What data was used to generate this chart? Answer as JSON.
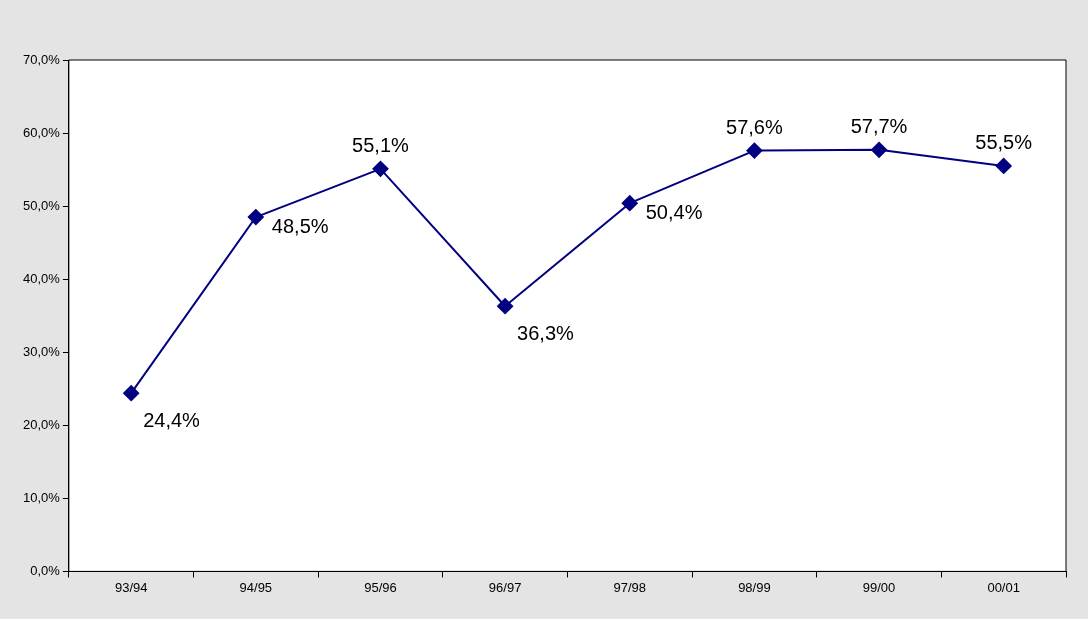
{
  "chart_data": {
    "type": "line",
    "categories": [
      "93/94",
      "94/95",
      "95/96",
      "96/97",
      "97/98",
      "98/99",
      "99/00",
      "00/01"
    ],
    "series": [
      {
        "color": "#000080",
        "values": [
          24.4,
          48.5,
          55.1,
          36.3,
          50.4,
          57.6,
          57.7,
          55.5
        ],
        "value_labels": [
          "24,4%",
          "48,5%",
          "55,1%",
          "36,3%",
          "50,4%",
          "57,6%",
          "57,7%",
          "55,5%"
        ]
      }
    ],
    "ylim": [
      0,
      70
    ],
    "yticks": [
      {
        "value": 0,
        "label": "0,0%"
      },
      {
        "value": 10,
        "label": "10,0%"
      },
      {
        "value": 20,
        "label": "20,0%"
      },
      {
        "value": 30,
        "label": "30,0%"
      },
      {
        "value": 40,
        "label": "40,0%"
      },
      {
        "value": 50,
        "label": "50,0%"
      },
      {
        "value": 60,
        "label": "60,0%"
      },
      {
        "value": 70,
        "label": "70,0%"
      }
    ],
    "grid": false,
    "legend": false,
    "marker": "diamond",
    "line_style": "solid"
  }
}
